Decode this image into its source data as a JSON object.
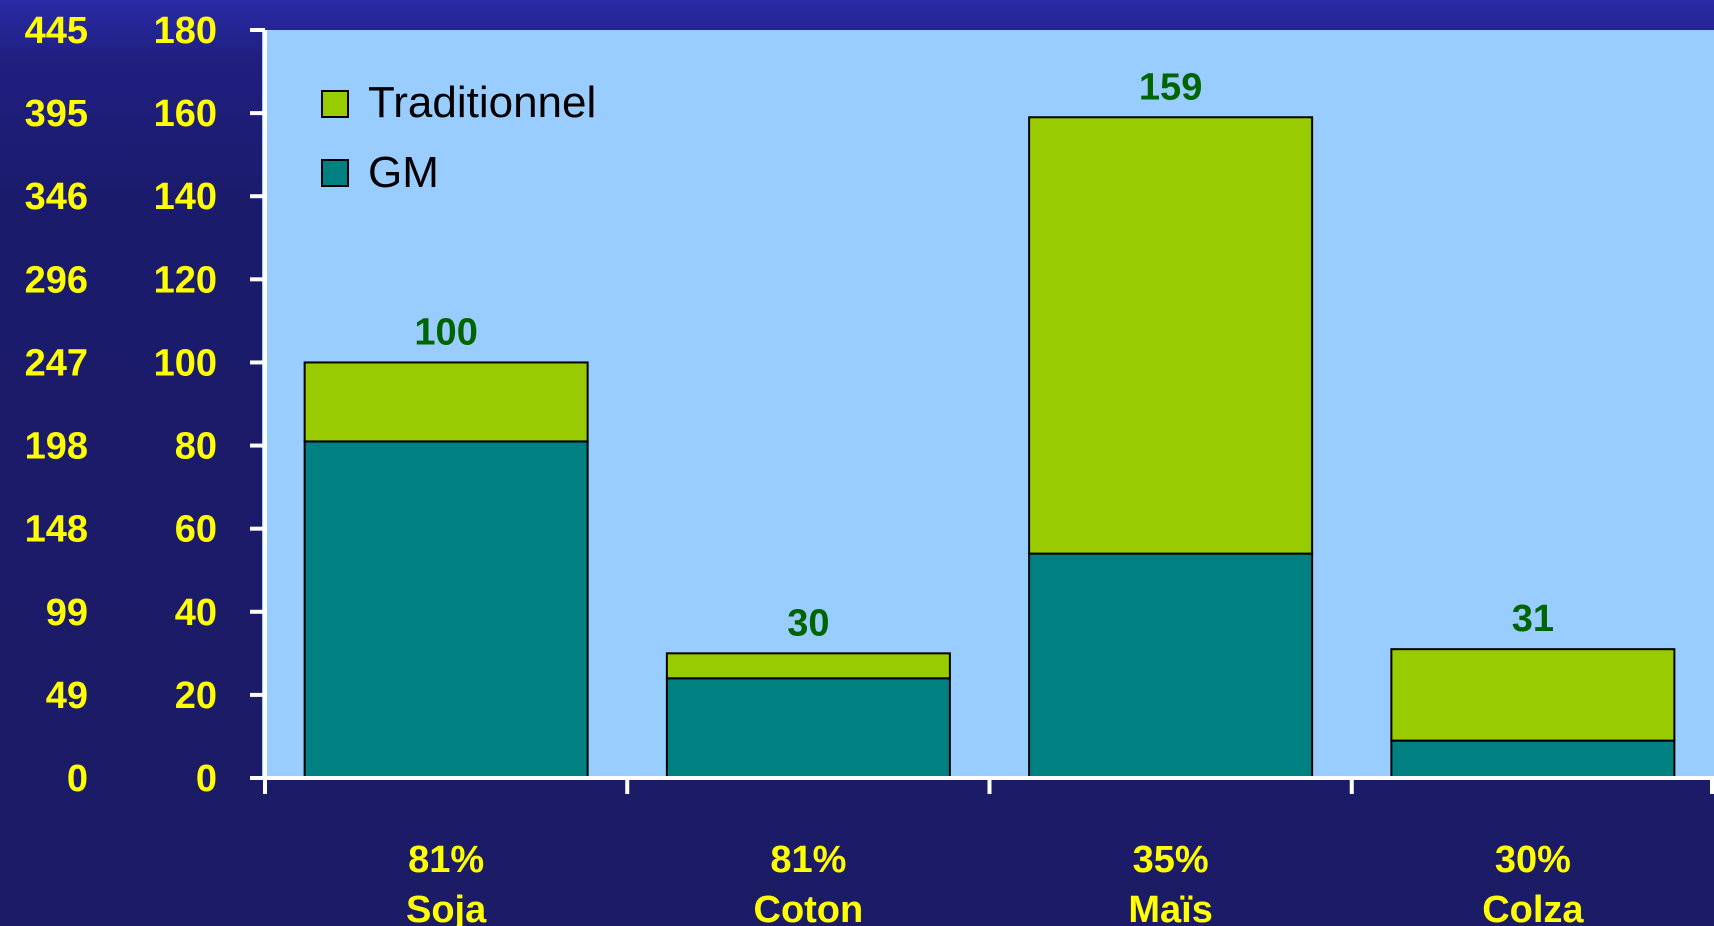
{
  "chart_data": {
    "type": "bar",
    "stacked": true,
    "categories": [
      "Soja",
      "Coton",
      "Maïs",
      "Colza"
    ],
    "category_percent_labels": [
      "81%",
      "81%",
      "35%",
      "30%"
    ],
    "series": [
      {
        "name": "GM",
        "values": [
          81,
          24,
          54,
          9
        ],
        "color": "#008080"
      },
      {
        "name": "Traditionnel",
        "values": [
          19,
          6,
          105,
          22
        ],
        "color": "#99cc00"
      }
    ],
    "totals": [
      "100",
      "30",
      "159",
      "31"
    ],
    "y_primary_ticks": [
      "0",
      "20",
      "40",
      "60",
      "80",
      "100",
      "120",
      "140",
      "160",
      "180"
    ],
    "y_secondary_ticks": [
      "0",
      "49",
      "99",
      "148",
      "198",
      "247",
      "296",
      "346",
      "395",
      "445"
    ],
    "ylim": [
      0,
      180
    ],
    "grid": false,
    "legend_position": "top-left",
    "legend": [
      "Traditionnel",
      "GM"
    ],
    "plot_background": "#99ccff",
    "title": "",
    "xlabel": "",
    "ylabel": ""
  }
}
